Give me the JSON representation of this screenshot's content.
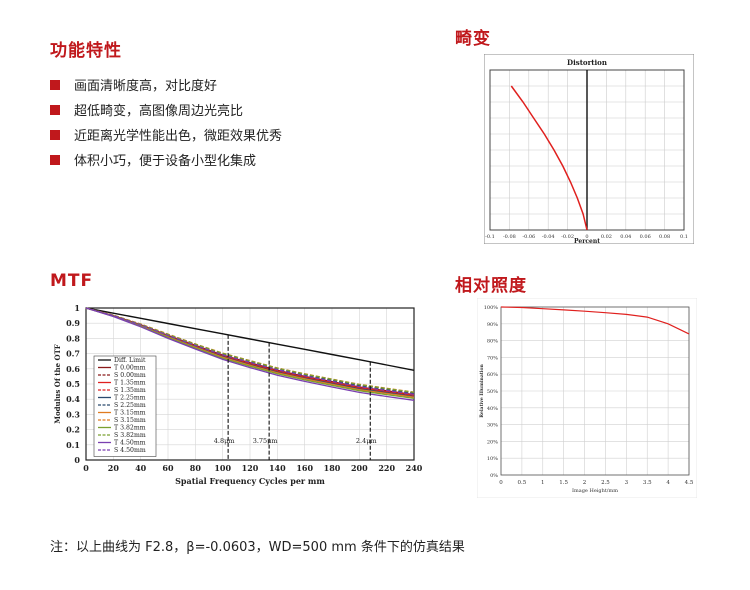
{
  "features": {
    "title": "功能特性",
    "items": [
      "画面清晰度高，对比度好",
      "超低畸变，高图像周边光亮比",
      "近距离光学性能出色，微距效果优秀",
      "体积小巧，便于设备小型化集成"
    ]
  },
  "headings": {
    "distortion": "畸变",
    "mtf": "MTF",
    "illumination": "相对照度"
  },
  "note": "注：以上曲线为 F2.8，β=-0.0603，WD=500 mm 条件下的仿真结果",
  "colors": {
    "accent": "#c0181c"
  },
  "chart_data": [
    {
      "id": "distortion",
      "type": "line",
      "title": "Distortion",
      "xlabel": "Percent",
      "ylabel": "",
      "x_ticks": [
        "-0.1",
        "-0.08",
        "-0.06",
        "-0.04",
        "-0.02",
        "0",
        "0.02",
        "0.04",
        "0.06",
        "0.08",
        "0.1"
      ],
      "xlim": [
        -0.1,
        0.1
      ],
      "ylim": [
        0,
        1
      ],
      "grid": true,
      "series": [
        {
          "color": "#e0201e",
          "x": [
            0,
            -0.004,
            -0.01,
            -0.017,
            -0.025,
            -0.034,
            -0.044,
            -0.055,
            -0.066,
            -0.078
          ],
          "y": [
            0,
            0.1,
            0.2,
            0.3,
            0.4,
            0.5,
            0.6,
            0.7,
            0.8,
            0.9
          ]
        }
      ]
    },
    {
      "id": "mtf",
      "type": "line",
      "xlabel": "Spatial Frequency Cycles per mm",
      "ylabel": "Modulus Of the OTF",
      "x_ticks": [
        0,
        20,
        40,
        60,
        80,
        100,
        120,
        140,
        160,
        180,
        200,
        220,
        240
      ],
      "y_ticks": [
        0,
        0.1,
        0.2,
        0.3,
        0.4,
        0.5,
        0.6,
        0.7,
        0.8,
        0.9,
        1
      ],
      "xlim": [
        0,
        240
      ],
      "ylim": [
        0,
        1
      ],
      "grid": true,
      "annotations": [
        {
          "text": "4.8μm",
          "x": 104
        },
        {
          "text": "3.75μm",
          "x": 134
        },
        {
          "text": "2.4μm",
          "x": 208
        }
      ],
      "x": [
        0,
        20,
        40,
        60,
        80,
        100,
        120,
        140,
        160,
        180,
        200,
        220,
        240
      ],
      "series": [
        {
          "name": "Diff. Limit",
          "color": "#111111",
          "dash": false,
          "values": [
            1,
            0.966,
            0.932,
            0.898,
            0.864,
            0.83,
            0.796,
            0.762,
            0.728,
            0.694,
            0.66,
            0.625,
            0.59
          ]
        },
        {
          "name": "T 0.00mm",
          "color": "#8b1a1a",
          "dash": false,
          "values": [
            1,
            0.95,
            0.89,
            0.82,
            0.755,
            0.69,
            0.64,
            0.59,
            0.55,
            0.515,
            0.48,
            0.455,
            0.43
          ]
        },
        {
          "name": "S 0.00mm",
          "color": "#8b1a1a",
          "dash": true,
          "values": [
            1,
            0.95,
            0.89,
            0.82,
            0.755,
            0.69,
            0.64,
            0.59,
            0.55,
            0.515,
            0.48,
            0.455,
            0.43
          ]
        },
        {
          "name": "T 1.35mm",
          "color": "#e02020",
          "dash": false,
          "values": [
            1,
            0.95,
            0.888,
            0.817,
            0.75,
            0.685,
            0.633,
            0.585,
            0.545,
            0.51,
            0.475,
            0.45,
            0.425
          ]
        },
        {
          "name": "S 1.35mm",
          "color": "#e02020",
          "dash": true,
          "values": [
            1,
            0.952,
            0.892,
            0.823,
            0.758,
            0.695,
            0.645,
            0.597,
            0.557,
            0.522,
            0.488,
            0.462,
            0.437
          ]
        },
        {
          "name": "T 2.25mm",
          "color": "#2b4a6e",
          "dash": false,
          "values": [
            1,
            0.948,
            0.885,
            0.813,
            0.745,
            0.68,
            0.627,
            0.578,
            0.538,
            0.503,
            0.468,
            0.443,
            0.418
          ]
        },
        {
          "name": "S 2.25mm",
          "color": "#2b4a6e",
          "dash": true,
          "values": [
            1,
            0.952,
            0.893,
            0.825,
            0.76,
            0.698,
            0.648,
            0.6,
            0.56,
            0.525,
            0.49,
            0.465,
            0.44
          ]
        },
        {
          "name": "T 3.15mm",
          "color": "#e07b20",
          "dash": false,
          "values": [
            1,
            0.947,
            0.883,
            0.81,
            0.742,
            0.676,
            0.623,
            0.574,
            0.534,
            0.498,
            0.463,
            0.438,
            0.413
          ]
        },
        {
          "name": "S 3.15mm",
          "color": "#e07b20",
          "dash": true,
          "values": [
            1,
            0.953,
            0.895,
            0.828,
            0.764,
            0.703,
            0.654,
            0.606,
            0.567,
            0.532,
            0.498,
            0.472,
            0.447
          ]
        },
        {
          "name": "T 3.82mm",
          "color": "#7aa030",
          "dash": false,
          "values": [
            1,
            0.946,
            0.88,
            0.806,
            0.737,
            0.67,
            0.617,
            0.568,
            0.527,
            0.491,
            0.456,
            0.43,
            0.405
          ]
        },
        {
          "name": "S 3.82mm",
          "color": "#7aa030",
          "dash": true,
          "values": [
            1,
            0.952,
            0.893,
            0.826,
            0.762,
            0.701,
            0.652,
            0.604,
            0.565,
            0.53,
            0.496,
            0.47,
            0.445
          ]
        },
        {
          "name": "T 4.50mm",
          "color": "#7a3fb0",
          "dash": false,
          "values": [
            1,
            0.944,
            0.876,
            0.8,
            0.73,
            0.662,
            0.608,
            0.558,
            0.517,
            0.48,
            0.445,
            0.418,
            0.393
          ]
        },
        {
          "name": "S 4.50mm",
          "color": "#7a3fb0",
          "dash": true,
          "values": [
            1,
            0.95,
            0.889,
            0.82,
            0.754,
            0.692,
            0.642,
            0.594,
            0.554,
            0.518,
            0.483,
            0.457,
            0.432
          ]
        }
      ]
    },
    {
      "id": "illumination",
      "type": "line",
      "xlabel": "Image Height/mm",
      "ylabel": "Relative Illumination",
      "x_ticks": [
        "0",
        "0.5",
        "1",
        "1.5",
        "2",
        "2.5",
        "3",
        "3.5",
        "4",
        "4.5"
      ],
      "y_ticks": [
        "0%",
        "10%",
        "20%",
        "30%",
        "40%",
        "50%",
        "60%",
        "70%",
        "80%",
        "90%",
        "100%"
      ],
      "xlim": [
        0,
        4.5
      ],
      "ylim": [
        0,
        100
      ],
      "grid": true,
      "series": [
        {
          "color": "#e0201e",
          "x": [
            0,
            0.5,
            1,
            1.5,
            2,
            2.5,
            3,
            3.5,
            4,
            4.5
          ],
          "y": [
            100,
            99.7,
            99,
            98.3,
            97.5,
            96.6,
            95.6,
            94,
            90,
            84
          ]
        }
      ]
    }
  ]
}
